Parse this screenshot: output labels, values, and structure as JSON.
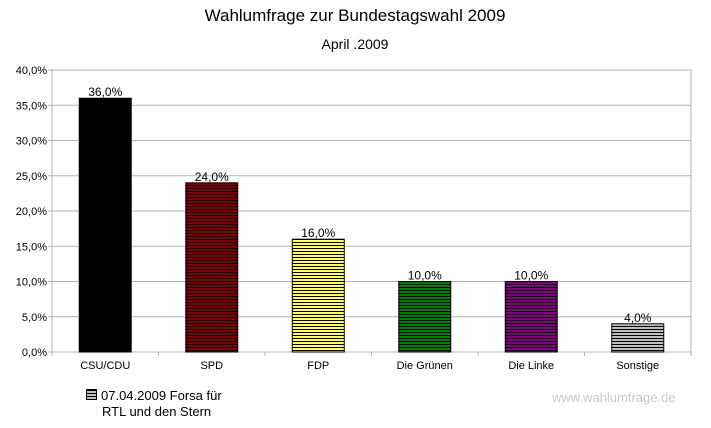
{
  "chart_data": {
    "type": "bar",
    "title": "Wahlumfrage zur Bundestagswahl 2009",
    "subtitle": "April .2009",
    "categories": [
      "CSU/CDU",
      "SPD",
      "FDP",
      "Die Grünen",
      "Die Linke",
      "Sonstige"
    ],
    "values": [
      36.0,
      24.0,
      16.0,
      10.0,
      10.0,
      4.0
    ],
    "data_labels": [
      "36,0%",
      "24,0%",
      "16,0%",
      "10,0%",
      "10,0%",
      "4,0%"
    ],
    "colors": [
      "#000000",
      "#800000",
      "#ffff66",
      "#008000",
      "#800080",
      "#c0c0c0"
    ],
    "ylim": [
      0,
      40
    ],
    "yticks": [
      0,
      5,
      10,
      15,
      20,
      25,
      30,
      35,
      40
    ],
    "ytick_labels": [
      "0,0%",
      "5,0%",
      "10,0%",
      "15,0%",
      "20,0%",
      "25,0%",
      "30,0%",
      "35,0%",
      "40,0%"
    ],
    "xlabel": "",
    "ylabel": "",
    "grid": true,
    "legend": {
      "placement": "bottom-left",
      "entries": [
        "07.04.2009 Forsa für",
        "RTL und den Stern"
      ]
    }
  },
  "watermark": "www.wahlumfrage.de"
}
